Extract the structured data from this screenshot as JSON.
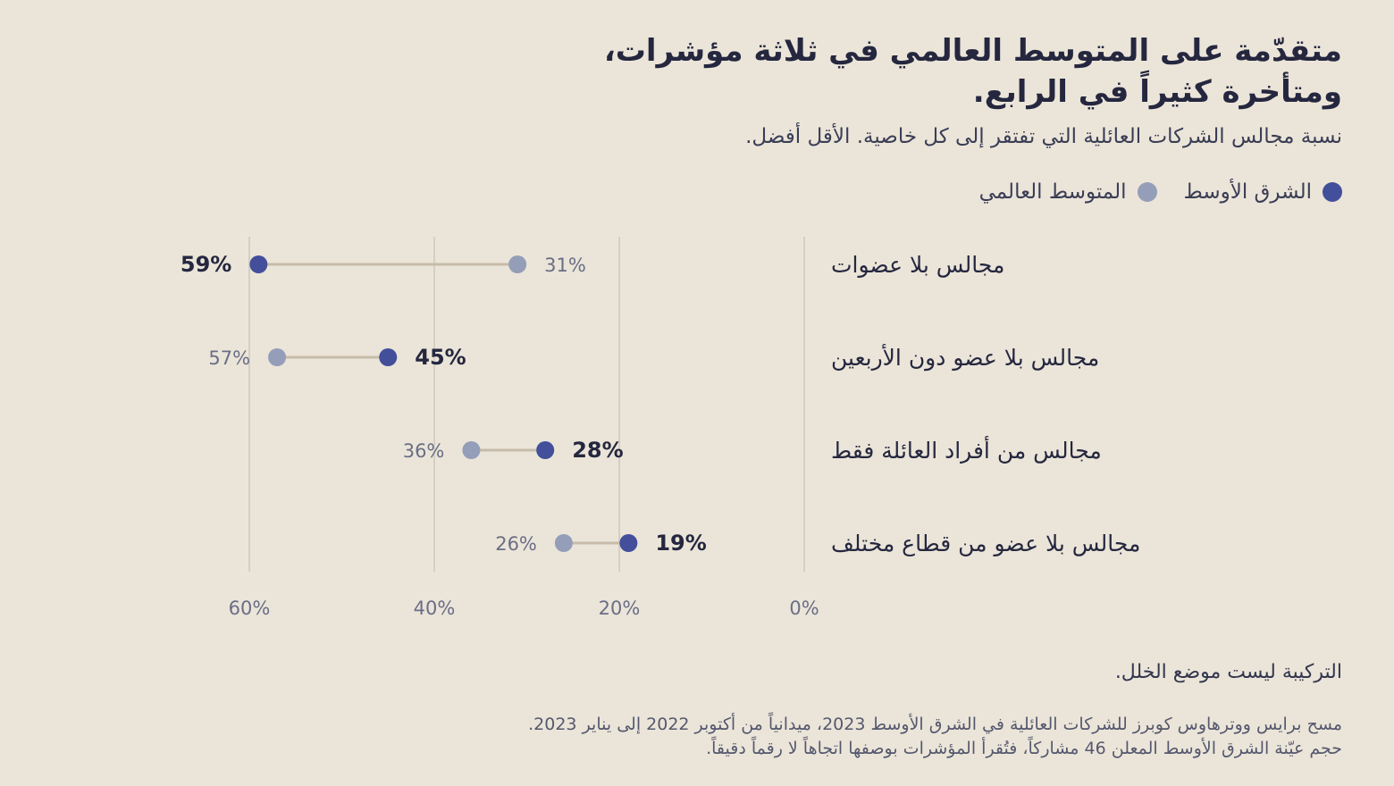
{
  "colors": {
    "background": "#ebe5d9",
    "middle_east": "#434f9b",
    "global_average": "#949eb8",
    "connector": "#c6bca9",
    "grid": "#d6cfc1"
  },
  "header": {
    "title_line1": "متقدّمة على المتوسط العالمي في ثلاثة مؤشرات،",
    "title_line2": "ومتأخرة كثيراً في الرابع.",
    "subtitle": "نسبة مجالس الشركات العائلية التي تفتقر إلى كل خاصية. الأقل أفضل."
  },
  "chart_data": {
    "type": "dumbbell",
    "x_axis": {
      "ylim_note": "reversed",
      "range": [
        0,
        60
      ],
      "ticks": [
        60,
        40,
        20,
        0
      ],
      "tick_labels": [
        "60%",
        "40%",
        "20%",
        "0%"
      ]
    },
    "grid": true,
    "legend_position": "top-right",
    "legend": [
      {
        "name": "الشرق الأوسط",
        "color": "#434f9b"
      },
      {
        "name": "المتوسط العالمي",
        "color": "#949eb8"
      }
    ],
    "categories": [
      "مجالس بلا عضوات",
      "مجالس بلا عضو دون الأربعين",
      "مجالس من أفراد العائلة فقط",
      "مجالس بلا عضو من قطاع مختلف"
    ],
    "series": [
      {
        "name": "الشرق الأوسط",
        "values": [
          59,
          45,
          28,
          19
        ],
        "labels": [
          "59%",
          "45%",
          "28%",
          "19%"
        ]
      },
      {
        "name": "المتوسط العالمي",
        "values": [
          31,
          57,
          36,
          26
        ],
        "labels": [
          "31%",
          "57%",
          "36%",
          "26%"
        ]
      }
    ]
  },
  "footer": {
    "note": "التركيبة ليست موضع الخلل.",
    "source_line1": "مسح برايس ووترهاوس كوبرز للشركات العائلية في الشرق الأوسط 2023، ميدانياً من أكتوبر 2022 إلى يناير 2023.",
    "source_line2": "حجم عيّنة الشرق الأوسط المعلن 46 مشاركاً، فتُقرأ المؤشرات بوصفها اتجاهاً لا رقماً دقيقاً."
  }
}
